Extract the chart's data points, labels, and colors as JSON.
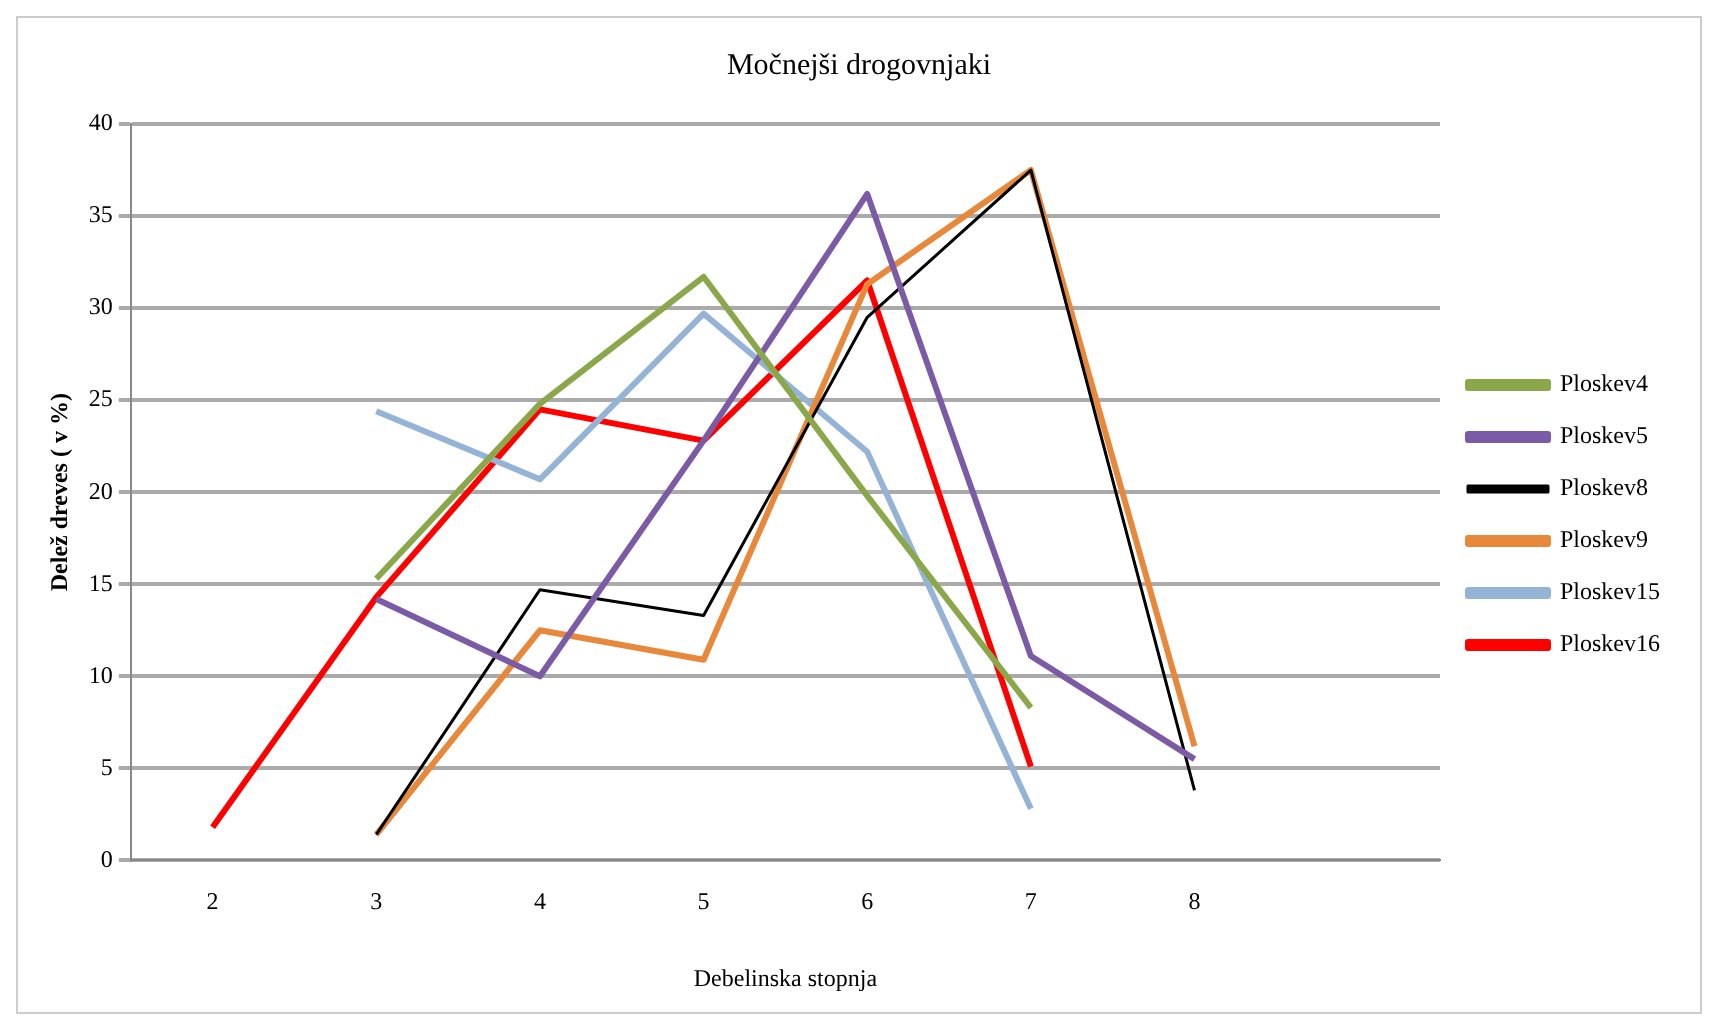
{
  "chart_data": {
    "type": "line",
    "title": "Močnejši drogovnjaki",
    "xlabel": "Debelinska stopnja",
    "ylabel": "Delež dreves ( v %)",
    "categories": [
      "2",
      "3",
      "4",
      "5",
      "6",
      "7",
      "8",
      null
    ],
    "series": [
      {
        "name": "Ploskev4",
        "color": "#8aa84a",
        "values": [
          null,
          15.3,
          24.8,
          31.7,
          19.8,
          8.3,
          null,
          null
        ]
      },
      {
        "name": "Ploskev5",
        "color": "#7b5ba6",
        "values": [
          null,
          14.2,
          10,
          22.8,
          36.2,
          11.1,
          5.5,
          null
        ]
      },
      {
        "name": "Ploskev8",
        "color": "#000000",
        "values": [
          null,
          1.4,
          14.7,
          13.3,
          29.5,
          37.5,
          3.8,
          null
        ]
      },
      {
        "name": "Ploskev9",
        "color": "#e8883a",
        "values": [
          null,
          1.4,
          12.5,
          10.9,
          31.3,
          37.5,
          6.2,
          null
        ]
      },
      {
        "name": "Ploskev15",
        "color": "#95b3d7",
        "values": [
          null,
          24.4,
          20.7,
          29.7,
          22.2,
          2.8,
          null,
          null
        ]
      },
      {
        "name": "Ploskev16",
        "color": "#ff0000",
        "values": [
          1.8,
          14.3,
          24.5,
          22.8,
          31.5,
          5.1,
          null,
          null
        ]
      }
    ],
    "ylim": [
      0,
      40
    ],
    "yticks": [
      0,
      5,
      10,
      15,
      20,
      25,
      30,
      35,
      40
    ],
    "grid": "y",
    "legend": "right",
    "marker": "none",
    "line_style": "solid"
  }
}
